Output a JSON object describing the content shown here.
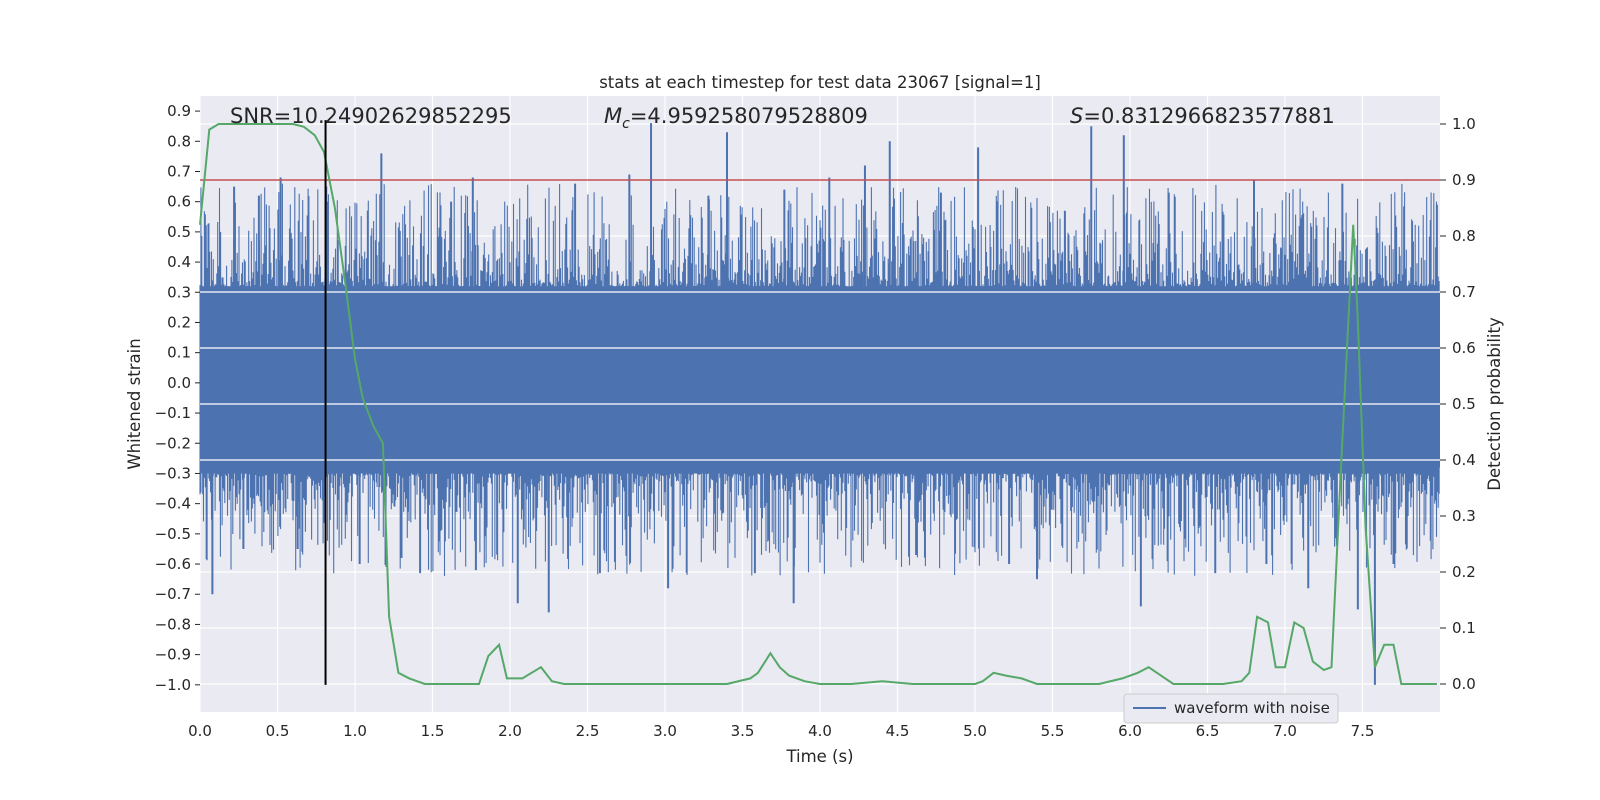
{
  "chart_data": {
    "type": "line",
    "title": "stats at each timestep for test data 23067 [signal=1]",
    "xlabel": "Time (s)",
    "ylabel": "Whitened strain",
    "y2label": "Detection probability",
    "xlim": [
      0.0,
      8.0
    ],
    "ylim": [
      -1.09,
      0.95
    ],
    "y2lim": [
      -0.05,
      1.05
    ],
    "xticks": [
      "0.0",
      "0.5",
      "1.0",
      "1.5",
      "2.0",
      "2.5",
      "3.0",
      "3.5",
      "4.0",
      "4.5",
      "5.0",
      "5.5",
      "6.0",
      "6.5",
      "7.0",
      "7.5"
    ],
    "yticks": [
      "0.9",
      "0.8",
      "0.7",
      "0.6",
      "0.5",
      "0.4",
      "0.3",
      "0.2",
      "0.1",
      "0.0",
      "−0.1",
      "−0.2",
      "−0.3",
      "−0.4",
      "−0.5",
      "−0.6",
      "−0.7",
      "−0.8",
      "−0.9",
      "−1.0"
    ],
    "y2ticks": [
      "1.0",
      "0.9",
      "0.8",
      "0.7",
      "0.6",
      "0.5",
      "0.4",
      "0.3",
      "0.2",
      "0.1",
      "0.0"
    ],
    "grid": true,
    "legend": {
      "location": "lower right",
      "entries": [
        "waveform with noise"
      ]
    },
    "annotations": {
      "snr": "SNR=10.24902629852295",
      "mc_symbol": "M",
      "mc_sub": "c",
      "mc_value": "=4.959258079528809",
      "s_symbol": "S",
      "s_value": "=0.8312966823577881"
    },
    "threshold_line": {
      "axis": "y2",
      "value": 0.9,
      "color": "#c44e52"
    },
    "marker_line": {
      "x": 0.81,
      "y_from": -1.0,
      "y_to": 0.87,
      "color": "#000000"
    },
    "series": [
      {
        "name": "waveform with noise",
        "axis": "y",
        "color": "#4c72b0",
        "kind": "noise",
        "core_band": [
          -0.28,
          0.3
        ],
        "x_range": [
          0.0,
          8.0
        ],
        "spikes": [
          {
            "x": 0.08,
            "y": -0.7
          },
          {
            "x": 0.13,
            "y": 0.5
          },
          {
            "x": 0.22,
            "y": 0.65
          },
          {
            "x": 0.28,
            "y": -0.55
          },
          {
            "x": 0.38,
            "y": 0.62
          },
          {
            "x": 0.52,
            "y": 0.68
          },
          {
            "x": 0.63,
            "y": -0.55
          },
          {
            "x": 0.82,
            "y": 0.6
          },
          {
            "x": 1.03,
            "y": -0.6
          },
          {
            "x": 1.17,
            "y": 0.76
          },
          {
            "x": 1.3,
            "y": -0.58
          },
          {
            "x": 1.42,
            "y": -0.63
          },
          {
            "x": 1.62,
            "y": 0.6
          },
          {
            "x": 1.78,
            "y": -0.62
          },
          {
            "x": 1.76,
            "y": 0.68
          },
          {
            "x": 2.05,
            "y": -0.73
          },
          {
            "x": 2.25,
            "y": -0.76
          },
          {
            "x": 2.42,
            "y": 0.66
          },
          {
            "x": 2.58,
            "y": -0.63
          },
          {
            "x": 2.77,
            "y": 0.69
          },
          {
            "x": 2.91,
            "y": 0.86
          },
          {
            "x": 3.02,
            "y": -0.68
          },
          {
            "x": 3.28,
            "y": 0.62
          },
          {
            "x": 3.4,
            "y": 0.83
          },
          {
            "x": 3.58,
            "y": -0.63
          },
          {
            "x": 3.77,
            "y": 0.64
          },
          {
            "x": 3.83,
            "y": -0.73
          },
          {
            "x": 4.06,
            "y": 0.68
          },
          {
            "x": 4.29,
            "y": 0.72
          },
          {
            "x": 4.45,
            "y": 0.8
          },
          {
            "x": 4.62,
            "y": -0.57
          },
          {
            "x": 4.78,
            "y": 0.63
          },
          {
            "x": 5.02,
            "y": 0.78
          },
          {
            "x": 5.22,
            "y": -0.6
          },
          {
            "x": 5.4,
            "y": -0.65
          },
          {
            "x": 5.58,
            "y": 0.57
          },
          {
            "x": 5.75,
            "y": 0.85
          },
          {
            "x": 5.96,
            "y": 0.82
          },
          {
            "x": 6.07,
            "y": -0.74
          },
          {
            "x": 6.25,
            "y": 0.63
          },
          {
            "x": 6.55,
            "y": -0.63
          },
          {
            "x": 6.8,
            "y": 0.67
          },
          {
            "x": 6.88,
            "y": -0.6
          },
          {
            "x": 7.15,
            "y": -0.68
          },
          {
            "x": 7.37,
            "y": 0.66
          },
          {
            "x": 7.47,
            "y": -0.75
          },
          {
            "x": 7.58,
            "y": -1.0
          },
          {
            "x": 7.7,
            "y": -0.6
          },
          {
            "x": 7.98,
            "y": 0.59
          }
        ]
      },
      {
        "name": "",
        "axis": "y2",
        "color": "#55a868",
        "points": [
          [
            0.0,
            0.82
          ],
          [
            0.06,
            0.99
          ],
          [
            0.12,
            1.0
          ],
          [
            0.2,
            1.0
          ],
          [
            0.3,
            1.0
          ],
          [
            0.4,
            1.0
          ],
          [
            0.5,
            1.0
          ],
          [
            0.6,
            1.0
          ],
          [
            0.67,
            0.995
          ],
          [
            0.74,
            0.98
          ],
          [
            0.8,
            0.95
          ],
          [
            0.87,
            0.85
          ],
          [
            0.94,
            0.71
          ],
          [
            1.0,
            0.58
          ],
          [
            1.05,
            0.51
          ],
          [
            1.12,
            0.46
          ],
          [
            1.18,
            0.43
          ],
          [
            1.22,
            0.12
          ],
          [
            1.28,
            0.02
          ],
          [
            1.35,
            0.01
          ],
          [
            1.45,
            0.0
          ],
          [
            1.6,
            0.0
          ],
          [
            1.8,
            0.0
          ],
          [
            1.86,
            0.05
          ],
          [
            1.93,
            0.07
          ],
          [
            1.98,
            0.01
          ],
          [
            2.08,
            0.01
          ],
          [
            2.2,
            0.03
          ],
          [
            2.27,
            0.005
          ],
          [
            2.35,
            0.0
          ],
          [
            2.5,
            0.0
          ],
          [
            2.6,
            0.0
          ],
          [
            2.7,
            0.0
          ],
          [
            2.8,
            0.0
          ],
          [
            3.0,
            0.0
          ],
          [
            3.2,
            0.0
          ],
          [
            3.4,
            0.0
          ],
          [
            3.55,
            0.01
          ],
          [
            3.6,
            0.02
          ],
          [
            3.68,
            0.055
          ],
          [
            3.74,
            0.03
          ],
          [
            3.8,
            0.015
          ],
          [
            3.9,
            0.005
          ],
          [
            4.0,
            0.0
          ],
          [
            4.2,
            0.0
          ],
          [
            4.4,
            0.005
          ],
          [
            4.6,
            0.0
          ],
          [
            4.8,
            0.0
          ],
          [
            5.0,
            0.0
          ],
          [
            5.05,
            0.005
          ],
          [
            5.12,
            0.02
          ],
          [
            5.2,
            0.015
          ],
          [
            5.3,
            0.01
          ],
          [
            5.4,
            0.0
          ],
          [
            5.6,
            0.0
          ],
          [
            5.8,
            0.0
          ],
          [
            5.95,
            0.01
          ],
          [
            6.05,
            0.02
          ],
          [
            6.12,
            0.03
          ],
          [
            6.2,
            0.015
          ],
          [
            6.28,
            0.0
          ],
          [
            6.4,
            0.0
          ],
          [
            6.6,
            0.0
          ],
          [
            6.72,
            0.005
          ],
          [
            6.77,
            0.02
          ],
          [
            6.82,
            0.12
          ],
          [
            6.89,
            0.11
          ],
          [
            6.94,
            0.03
          ],
          [
            7.0,
            0.03
          ],
          [
            7.06,
            0.11
          ],
          [
            7.12,
            0.1
          ],
          [
            7.18,
            0.04
          ],
          [
            7.25,
            0.025
          ],
          [
            7.3,
            0.03
          ],
          [
            7.36,
            0.38
          ],
          [
            7.4,
            0.6
          ],
          [
            7.44,
            0.82
          ],
          [
            7.47,
            0.65
          ],
          [
            7.52,
            0.28
          ],
          [
            7.58,
            0.03
          ],
          [
            7.64,
            0.07
          ],
          [
            7.7,
            0.07
          ],
          [
            7.75,
            0.0
          ],
          [
            7.85,
            0.0
          ],
          [
            7.98,
            0.0
          ]
        ]
      }
    ]
  }
}
